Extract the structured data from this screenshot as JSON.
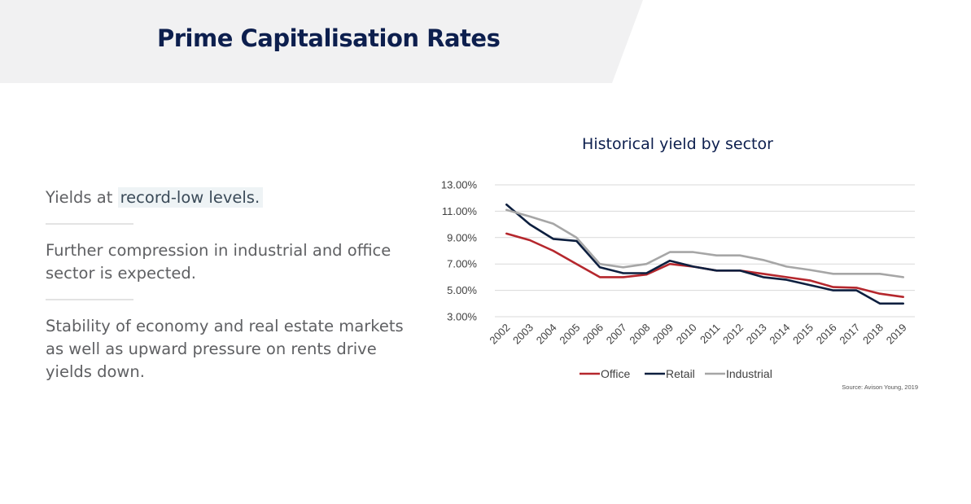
{
  "header": {
    "title": "Prime Capitalisation Rates"
  },
  "bullets": {
    "b1_prefix": "Yields at ",
    "b1_highlight": "record-low levels.",
    "b2": "Further compression in industrial and office sector is expected.",
    "b3": "Stability of economy and real estate markets as well as upward pressure on rents drive yields down."
  },
  "source": "Source: Avison Young, 2019",
  "chart_data": {
    "type": "line",
    "title": "Historical yield by sector",
    "x": [
      "2002",
      "2003",
      "2004",
      "2005",
      "2006",
      "2007",
      "2008",
      "2009",
      "2010",
      "2011",
      "2012",
      "2013",
      "2014",
      "2015",
      "2016",
      "2017",
      "2018",
      "2019"
    ],
    "y_ticks": [
      "13.00%",
      "11.00%",
      "9.00%",
      "7.00%",
      "5.00%",
      "3.00%"
    ],
    "ylim": [
      3,
      13
    ],
    "grid": true,
    "legend": "bottom",
    "series": [
      {
        "name": "Office",
        "color": "#b5272d",
        "values": [
          9.3,
          8.8,
          8.0,
          7.0,
          6.0,
          6.0,
          6.2,
          7.0,
          6.8,
          6.5,
          6.5,
          6.25,
          6.0,
          5.75,
          5.25,
          5.2,
          4.75,
          4.5
        ]
      },
      {
        "name": "Retail",
        "color": "#0d1f3f",
        "values": [
          11.5,
          10.0,
          8.9,
          8.75,
          6.75,
          6.3,
          6.3,
          7.25,
          6.8,
          6.5,
          6.5,
          6.0,
          5.8,
          5.4,
          5.0,
          5.0,
          4.0,
          4.0
        ]
      },
      {
        "name": "Industrial",
        "color": "#a6a6a6",
        "values": [
          11.1,
          10.6,
          10.05,
          9.0,
          7.0,
          6.75,
          7.0,
          7.9,
          7.9,
          7.65,
          7.65,
          7.3,
          6.8,
          6.55,
          6.25,
          6.25,
          6.25,
          6.0
        ]
      }
    ]
  }
}
